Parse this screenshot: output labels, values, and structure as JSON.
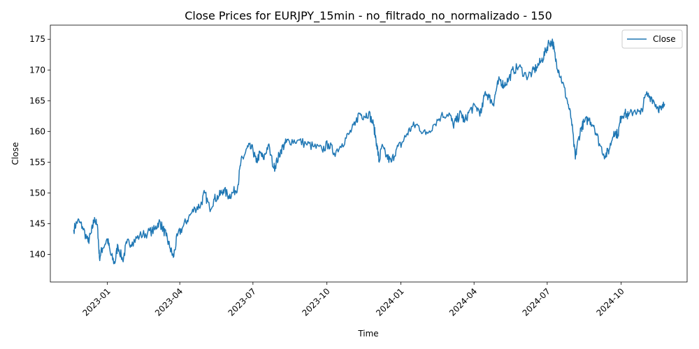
{
  "chart_data": {
    "type": "line",
    "title": "Close Prices for EURJPY_15min - no_filtrado_no_normalizado - 150",
    "xlabel": "Time",
    "ylabel": "Close",
    "grid": false,
    "legend_position": "top-right",
    "xlim": [
      "2022-10-22",
      "2024-12-22"
    ],
    "ylim": [
      135.5,
      177.3
    ],
    "x_ticks": [
      "2023-01",
      "2023-04",
      "2023-07",
      "2023-10",
      "2024-01",
      "2024-04",
      "2024-07",
      "2024-10"
    ],
    "y_ticks": [
      140,
      145,
      150,
      155,
      160,
      165,
      170,
      175
    ],
    "series": [
      {
        "name": "Close",
        "color": "#1f77b4",
        "x": [
          "2022-11-20",
          "2022-11-25",
          "2022-12-01",
          "2022-12-08",
          "2022-12-12",
          "2022-12-16",
          "2022-12-20",
          "2022-12-22",
          "2022-12-26",
          "2023-01-01",
          "2023-01-05",
          "2023-01-10",
          "2023-01-14",
          "2023-01-20",
          "2023-01-25",
          "2023-02-01",
          "2023-02-10",
          "2023-02-20",
          "2023-03-01",
          "2023-03-06",
          "2023-03-10",
          "2023-03-15",
          "2023-03-20",
          "2023-03-24",
          "2023-03-29",
          "2023-04-05",
          "2023-04-12",
          "2023-04-20",
          "2023-04-27",
          "2023-05-02",
          "2023-05-08",
          "2023-05-14",
          "2023-05-20",
          "2023-05-25",
          "2023-06-01",
          "2023-06-06",
          "2023-06-12",
          "2023-06-16",
          "2023-06-20",
          "2023-06-25",
          "2023-07-01",
          "2023-07-05",
          "2023-07-10",
          "2023-07-14",
          "2023-07-20",
          "2023-07-27",
          "2023-07-31",
          "2023-08-05",
          "2023-08-10",
          "2023-08-15",
          "2023-08-25",
          "2023-09-05",
          "2023-09-15",
          "2023-09-25",
          "2023-10-03",
          "2023-10-10",
          "2023-10-20",
          "2023-10-28",
          "2023-11-05",
          "2023-11-10",
          "2023-11-16",
          "2023-11-22",
          "2023-11-28",
          "2023-12-02",
          "2023-12-05",
          "2023-12-08",
          "2023-12-14",
          "2023-12-20",
          "2023-12-26",
          "2024-01-02",
          "2024-01-08",
          "2024-01-15",
          "2024-01-22",
          "2024-02-01",
          "2024-02-10",
          "2024-02-20",
          "2024-03-01",
          "2024-03-06",
          "2024-03-11",
          "2024-03-16",
          "2024-03-20",
          "2024-03-27",
          "2024-04-03",
          "2024-04-10",
          "2024-04-15",
          "2024-04-20",
          "2024-04-25",
          "2024-04-29",
          "2024-05-03",
          "2024-05-08",
          "2024-05-14",
          "2024-05-20",
          "2024-05-27",
          "2024-06-05",
          "2024-06-12",
          "2024-06-18",
          "2024-06-24",
          "2024-06-29",
          "2024-07-03",
          "2024-07-08",
          "2024-07-11",
          "2024-07-15",
          "2024-07-20",
          "2024-07-26",
          "2024-07-31",
          "2024-08-05",
          "2024-08-07",
          "2024-08-12",
          "2024-08-16",
          "2024-08-22",
          "2024-08-28",
          "2024-09-04",
          "2024-09-11",
          "2024-09-16",
          "2024-09-22",
          "2024-09-27",
          "2024-10-01",
          "2024-10-05",
          "2024-10-10",
          "2024-10-18",
          "2024-10-25",
          "2024-11-01",
          "2024-11-08",
          "2024-11-15",
          "2024-11-20",
          "2024-11-24"
        ],
        "values": [
          144.0,
          145.5,
          144.5,
          142.0,
          143.5,
          146.0,
          144.0,
          139.5,
          141.0,
          142.5,
          140.0,
          138.5,
          141.5,
          139.0,
          141.8,
          142.0,
          143.0,
          143.5,
          144.0,
          145.3,
          144.5,
          143.0,
          141.0,
          139.5,
          143.0,
          144.5,
          146.0,
          147.5,
          148.0,
          150.0,
          147.5,
          149.0,
          149.5,
          150.5,
          149.5,
          150.0,
          151.0,
          155.0,
          156.0,
          157.5,
          157.0,
          155.0,
          156.5,
          155.5,
          157.8,
          154.0,
          155.2,
          157.0,
          158.0,
          158.5,
          158.5,
          158.0,
          157.5,
          157.0,
          158.0,
          156.5,
          158.0,
          159.5,
          161.0,
          163.0,
          162.5,
          163.0,
          161.0,
          158.0,
          155.0,
          157.5,
          156.0,
          155.0,
          157.0,
          158.0,
          159.5,
          160.8,
          161.0,
          159.5,
          161.0,
          162.5,
          163.0,
          161.0,
          162.0,
          163.0,
          161.5,
          163.5,
          164.0,
          163.0,
          166.5,
          165.5,
          164.5,
          167.0,
          168.5,
          167.5,
          168.5,
          170.0,
          170.5,
          169.0,
          169.5,
          170.5,
          171.5,
          173.0,
          174.5,
          174.5,
          172.0,
          170.0,
          168.0,
          165.0,
          162.0,
          155.5,
          157.5,
          160.5,
          161.5,
          162.0,
          161.0,
          158.0,
          156.0,
          157.0,
          160.0,
          159.5,
          162.5,
          163.0,
          162.5,
          163.5,
          162.8,
          166.0,
          165.5,
          164.0,
          163.5,
          164.5
        ]
      }
    ]
  }
}
